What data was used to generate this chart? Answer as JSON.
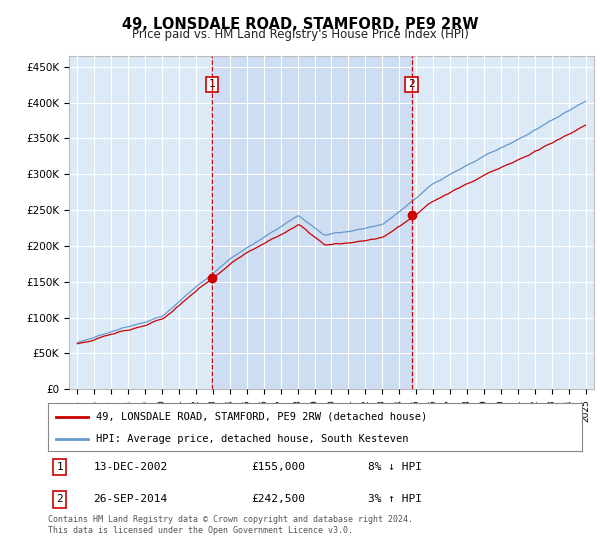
{
  "title": "49, LONSDALE ROAD, STAMFORD, PE9 2RW",
  "subtitle": "Price paid vs. HM Land Registry's House Price Index (HPI)",
  "background_color": "#ffffff",
  "plot_bg_color": "#dce9f7",
  "grid_color": "#ffffff",
  "yticks": [
    0,
    50000,
    100000,
    150000,
    200000,
    250000,
    300000,
    350000,
    400000,
    450000
  ],
  "ytick_labels": [
    "£0",
    "£50K",
    "£100K",
    "£150K",
    "£200K",
    "£250K",
    "£300K",
    "£350K",
    "£400K",
    "£450K"
  ],
  "ylim": [
    0,
    465000
  ],
  "sale1_date_x": 2002.95,
  "sale1_price": 155000,
  "sale1_label": "1",
  "sale2_date_x": 2014.73,
  "sale2_price": 242500,
  "sale2_label": "2",
  "legend_line1": "49, LONSDALE ROAD, STAMFORD, PE9 2RW (detached house)",
  "legend_line2": "HPI: Average price, detached house, South Kesteven",
  "table_row1": [
    "1",
    "13-DEC-2002",
    "£155,000",
    "8% ↓ HPI"
  ],
  "table_row2": [
    "2",
    "26-SEP-2014",
    "£242,500",
    "3% ↑ HPI"
  ],
  "footer": "Contains HM Land Registry data © Crown copyright and database right 2024.\nThis data is licensed under the Open Government Licence v3.0.",
  "hpi_color": "#6699cc",
  "price_color": "#cc0000",
  "sale_vline_color": "#cc0000",
  "shade_color": "#c8d8f0",
  "xlim_start": 1994.5,
  "xlim_end": 2025.5
}
